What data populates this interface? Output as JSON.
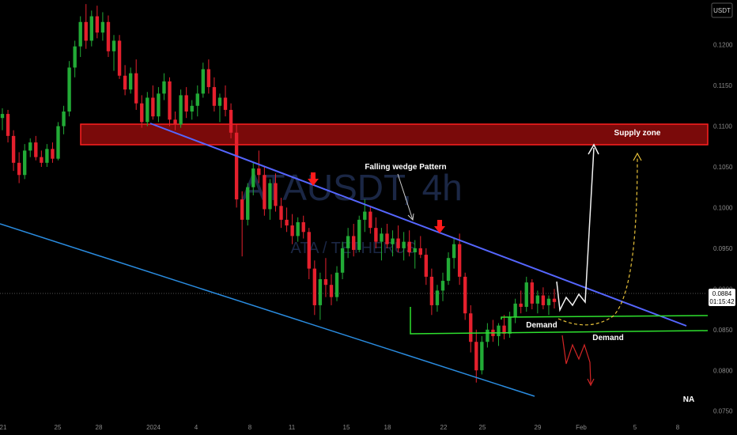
{
  "chart_data": {
    "type": "candlestick",
    "watermark": {
      "symbol": "ATAUSDT, 4h",
      "subtitle": "ATA / TETHERUS"
    },
    "currency": "USDT",
    "y_ticks": [
      "0.1200",
      "0.1150",
      "0.1100",
      "0.1050",
      "0.1000",
      "0.0950",
      "0.0900",
      "0.0850",
      "0.0800",
      "0.0750"
    ],
    "x_ticks": [
      "21",
      "25",
      "28",
      "2024",
      "4",
      "8",
      "11",
      "15",
      "18",
      "22",
      "25",
      "29",
      "Feb",
      "5",
      "8"
    ],
    "current_price": "0.0884",
    "countdown": "01:15:42",
    "ylim": [
      0.074,
      0.1255
    ],
    "xlim": [
      0,
      100
    ],
    "candles": [
      [
        0.111,
        0.1122,
        0.1095,
        0.1115
      ],
      [
        0.1115,
        0.112,
        0.108,
        0.1088
      ],
      [
        0.1088,
        0.1095,
        0.1045,
        0.1055
      ],
      [
        0.1055,
        0.1068,
        0.103,
        0.104
      ],
      [
        0.104,
        0.1078,
        0.1035,
        0.107
      ],
      [
        0.107,
        0.1085,
        0.1062,
        0.108
      ],
      [
        0.108,
        0.1088,
        0.1058,
        0.1062
      ],
      [
        0.1062,
        0.107,
        0.105,
        0.1055
      ],
      [
        0.1055,
        0.1078,
        0.105,
        0.1072
      ],
      [
        0.1072,
        0.108,
        0.1055,
        0.106
      ],
      [
        0.106,
        0.1105,
        0.1058,
        0.11
      ],
      [
        0.11,
        0.1125,
        0.109,
        0.1118
      ],
      [
        0.1118,
        0.118,
        0.1112,
        0.1172
      ],
      [
        0.1172,
        0.1205,
        0.116,
        0.1198
      ],
      [
        0.1198,
        0.1235,
        0.1185,
        0.1228
      ],
      [
        0.1228,
        0.125,
        0.1195,
        0.1205
      ],
      [
        0.1205,
        0.1242,
        0.1198,
        0.1235
      ],
      [
        0.1235,
        0.1248,
        0.1208,
        0.1215
      ],
      [
        0.1215,
        0.124,
        0.1205,
        0.1228
      ],
      [
        0.1228,
        0.1236,
        0.1185,
        0.1192
      ],
      [
        0.1192,
        0.1212,
        0.1168,
        0.1205
      ],
      [
        0.1205,
        0.1212,
        0.1158,
        0.1162
      ],
      [
        0.1162,
        0.1175,
        0.1138,
        0.1145
      ],
      [
        0.1145,
        0.1172,
        0.114,
        0.1165
      ],
      [
        0.1165,
        0.1182,
        0.112,
        0.1128
      ],
      [
        0.1128,
        0.1138,
        0.1098,
        0.1105
      ],
      [
        0.1105,
        0.1142,
        0.11,
        0.1135
      ],
      [
        0.1135,
        0.115,
        0.1108,
        0.1112
      ],
      [
        0.1112,
        0.1148,
        0.1105,
        0.114
      ],
      [
        0.114,
        0.1165,
        0.1132,
        0.1155
      ],
      [
        0.1155,
        0.116,
        0.11,
        0.1108
      ],
      [
        0.1108,
        0.1118,
        0.1095,
        0.1102
      ],
      [
        0.1102,
        0.1145,
        0.1098,
        0.1138
      ],
      [
        0.1138,
        0.1148,
        0.111,
        0.1118
      ],
      [
        0.1118,
        0.1132,
        0.1108,
        0.1125
      ],
      [
        0.1125,
        0.115,
        0.1112,
        0.114
      ],
      [
        0.114,
        0.1178,
        0.1135,
        0.117
      ],
      [
        0.117,
        0.1182,
        0.114,
        0.1148
      ],
      [
        0.1148,
        0.116,
        0.1118,
        0.1125
      ],
      [
        0.1125,
        0.114,
        0.1105,
        0.1135
      ],
      [
        0.1135,
        0.115,
        0.1112,
        0.112
      ],
      [
        0.112,
        0.1128,
        0.1085,
        0.1092
      ],
      [
        0.1092,
        0.1102,
        0.1,
        0.101
      ],
      [
        0.101,
        0.102,
        0.094,
        0.0985
      ],
      [
        0.0985,
        0.103,
        0.0978,
        0.1025
      ],
      [
        0.1025,
        0.1055,
        0.1015,
        0.1048
      ],
      [
        0.1048,
        0.107,
        0.103,
        0.104
      ],
      [
        0.104,
        0.105,
        0.099,
        0.0998
      ],
      [
        0.0998,
        0.1035,
        0.0985,
        0.103
      ],
      [
        0.103,
        0.1042,
        0.0995,
        0.1002
      ],
      [
        0.1002,
        0.1012,
        0.0975,
        0.0985
      ],
      [
        0.0985,
        0.1,
        0.097,
        0.0978
      ],
      [
        0.0978,
        0.0992,
        0.0955,
        0.0965
      ],
      [
        0.0965,
        0.0988,
        0.0958,
        0.0982
      ],
      [
        0.0982,
        0.099,
        0.0962,
        0.097
      ],
      [
        0.097,
        0.0975,
        0.0912,
        0.0925
      ],
      [
        0.0925,
        0.0935,
        0.0868,
        0.088
      ],
      [
        0.088,
        0.092,
        0.0862,
        0.0912
      ],
      [
        0.0912,
        0.0938,
        0.089,
        0.0905
      ],
      [
        0.0905,
        0.0918,
        0.088,
        0.089
      ],
      [
        0.089,
        0.0928,
        0.0885,
        0.092
      ],
      [
        0.092,
        0.0958,
        0.0912,
        0.095
      ],
      [
        0.095,
        0.0975,
        0.0938,
        0.0965
      ],
      [
        0.0965,
        0.098,
        0.094,
        0.0948
      ],
      [
        0.0948,
        0.099,
        0.0945,
        0.0985
      ],
      [
        0.0985,
        0.101,
        0.097,
        0.0995
      ],
      [
        0.0995,
        0.1002,
        0.0968,
        0.0975
      ],
      [
        0.0975,
        0.0988,
        0.095,
        0.0958
      ],
      [
        0.0958,
        0.0975,
        0.0935,
        0.0968
      ],
      [
        0.0968,
        0.098,
        0.095,
        0.0955
      ],
      [
        0.0955,
        0.0972,
        0.094,
        0.0962
      ],
      [
        0.0962,
        0.0978,
        0.0945,
        0.095
      ],
      [
        0.095,
        0.097,
        0.0935,
        0.0958
      ],
      [
        0.0958,
        0.0972,
        0.094,
        0.0945
      ],
      [
        0.0945,
        0.096,
        0.0925,
        0.095
      ],
      [
        0.095,
        0.0965,
        0.0938,
        0.0942
      ],
      [
        0.0942,
        0.095,
        0.0905,
        0.0915
      ],
      [
        0.0915,
        0.0925,
        0.0868,
        0.088
      ],
      [
        0.088,
        0.0905,
        0.0872,
        0.0898
      ],
      [
        0.0898,
        0.092,
        0.0885,
        0.091
      ],
      [
        0.091,
        0.0945,
        0.0905,
        0.0938
      ],
      [
        0.0938,
        0.0962,
        0.0925,
        0.0955
      ],
      [
        0.0955,
        0.0968,
        0.0905,
        0.0915
      ],
      [
        0.0915,
        0.092,
        0.0862,
        0.087
      ],
      [
        0.087,
        0.088,
        0.0822,
        0.0835
      ],
      [
        0.0835,
        0.085,
        0.0785,
        0.08
      ],
      [
        0.08,
        0.0842,
        0.0795,
        0.0835
      ],
      [
        0.0835,
        0.0858,
        0.0828,
        0.085
      ],
      [
        0.085,
        0.0862,
        0.0835,
        0.0842
      ],
      [
        0.0842,
        0.0858,
        0.083,
        0.0855
      ],
      [
        0.0855,
        0.0868,
        0.0838,
        0.0845
      ],
      [
        0.0845,
        0.0872,
        0.084,
        0.0865
      ],
      [
        0.0865,
        0.0888,
        0.0858,
        0.0882
      ],
      [
        0.0882,
        0.0898,
        0.087,
        0.0878
      ],
      [
        0.0878,
        0.0915,
        0.0872,
        0.0908
      ],
      [
        0.0908,
        0.0912,
        0.0875,
        0.0882
      ],
      [
        0.0882,
        0.0898,
        0.087,
        0.0892
      ],
      [
        0.0892,
        0.0902,
        0.0875,
        0.088
      ],
      [
        0.088,
        0.0892,
        0.0868,
        0.0888
      ],
      [
        0.0888,
        0.09,
        0.0876,
        0.0884
      ]
    ],
    "annotations": {
      "supply_zone": {
        "label": "Supply zone",
        "price_low": 0.1068,
        "price_high": 0.1092
      },
      "pattern_label": "Falling wedge Pattern",
      "demand_labels": [
        "Demand",
        "Demand"
      ],
      "demand_levels": [
        0.0853,
        0.0835
      ],
      "corner_label": "NA"
    },
    "colors": {
      "background": "#000000",
      "bull": "#22ab36",
      "bear": "#e5202d",
      "zone_fill": "#7a0a0a",
      "zone_border": "#ff2020",
      "wedge_upper": "#5566ff",
      "wedge_lower": "#2a8ce0",
      "demand": "#2ee02e",
      "bull_path": "#ffffff",
      "alt_path": "#e8c23a",
      "bear_path": "#d32525",
      "arrow_marker": "#ff1a1a"
    }
  }
}
